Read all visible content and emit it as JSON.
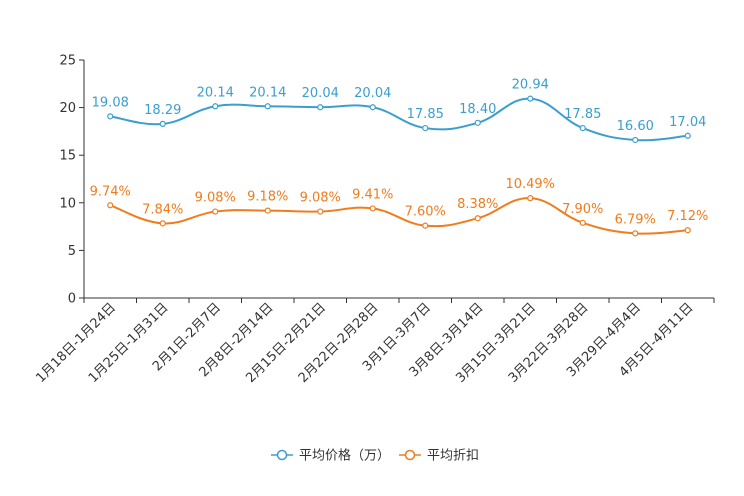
{
  "chart_data": {
    "type": "line",
    "categories": [
      "1月18日-1月24日",
      "1月25日-1月31日",
      "2月1日-2月7日",
      "2月8日-2月14日",
      "2月15日-2月21日",
      "2月22日-2月28日",
      "3月1日-3月7日",
      "3月8日-3月14日",
      "3月15日-3月21日",
      "3月22日-3月28日",
      "3月29日-4月4日",
      "4月5日-4月11日"
    ],
    "ylim": [
      0,
      25
    ],
    "yticks": [
      0,
      5,
      10,
      15,
      20,
      25
    ],
    "grid": false,
    "legend_position": "bottom-center",
    "series": [
      {
        "name": "平均价格（万）",
        "color": "#3a9fcf",
        "values": [
          19.08,
          18.29,
          20.14,
          20.14,
          20.04,
          20.04,
          17.85,
          18.4,
          20.94,
          17.85,
          16.6,
          17.04
        ],
        "labels": [
          "19.08",
          "18.29",
          "20.14",
          "20.14",
          "20.04",
          "20.04",
          "17.85",
          "18.40",
          "20.94",
          "17.85",
          "16.60",
          "17.04"
        ]
      },
      {
        "name": "平均折扣",
        "color": "#f07c1c",
        "values": [
          9.74,
          7.84,
          9.08,
          9.18,
          9.08,
          9.41,
          7.6,
          8.38,
          10.49,
          7.9,
          6.79,
          7.12
        ],
        "labels": [
          "9.74%",
          "7.84%",
          "9.08%",
          "9.18%",
          "9.08%",
          "9.41%",
          "7.60%",
          "8.38%",
          "10.49%",
          "7.90%",
          "6.79%",
          "7.12%"
        ]
      }
    ]
  }
}
